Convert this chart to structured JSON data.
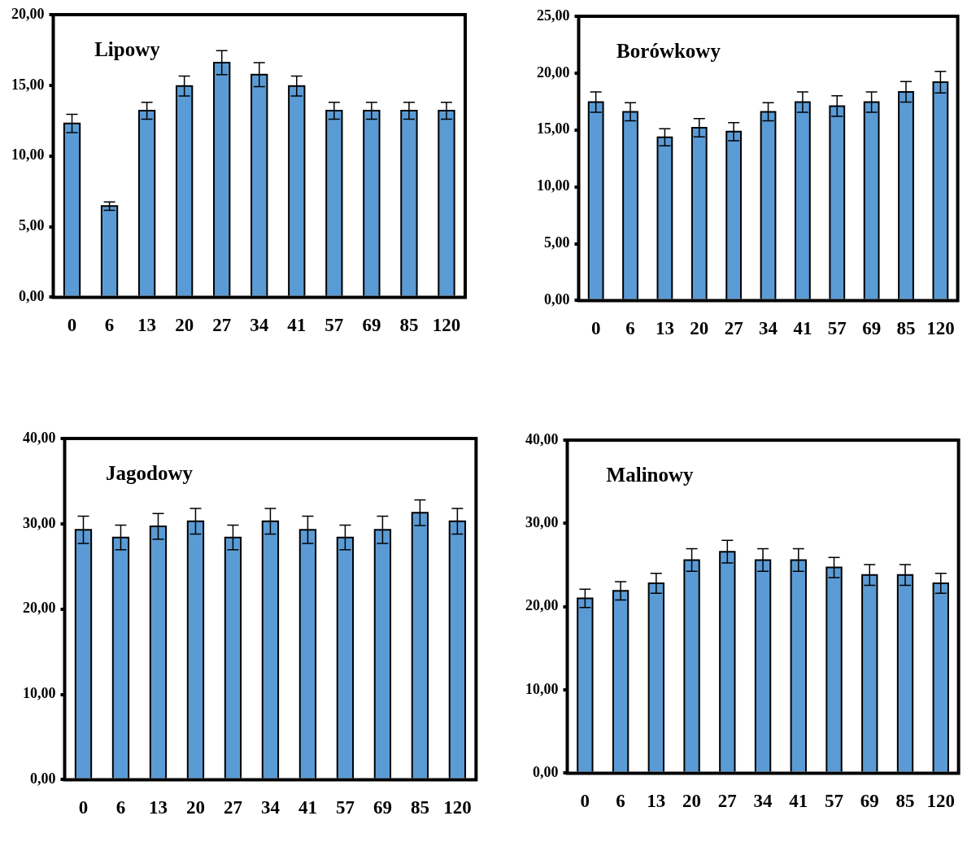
{
  "chart_data": [
    {
      "type": "bar",
      "title": "Lipowy",
      "categories": [
        "0",
        "6",
        "13",
        "20",
        "27",
        "34",
        "41",
        "57",
        "69",
        "85",
        "120"
      ],
      "values": [
        12.3,
        6.45,
        13.2,
        14.95,
        16.6,
        15.75,
        14.95,
        13.2,
        13.2,
        13.2,
        13.2
      ],
      "errors": [
        0.65,
        0.3,
        0.6,
        0.7,
        0.85,
        0.85,
        0.7,
        0.6,
        0.6,
        0.6,
        0.6
      ],
      "color": "#5b9bd5",
      "ylim": [
        0,
        20
      ],
      "yticks": [
        {
          "value": 0,
          "label": "0,00"
        },
        {
          "value": 5,
          "label": "5,00"
        },
        {
          "value": 10,
          "label": "10,00"
        },
        {
          "value": 15,
          "label": "15,00"
        },
        {
          "value": 20,
          "label": "20,00"
        }
      ],
      "grid": false
    },
    {
      "type": "bar",
      "title": "Borówkowy",
      "categories": [
        "0",
        "6",
        "13",
        "20",
        "27",
        "34",
        "41",
        "57",
        "69",
        "85",
        "120"
      ],
      "values": [
        17.45,
        16.6,
        14.35,
        15.2,
        14.85,
        16.6,
        17.45,
        17.1,
        17.45,
        18.35,
        19.2
      ],
      "errors": [
        0.9,
        0.8,
        0.75,
        0.8,
        0.8,
        0.8,
        0.9,
        0.9,
        0.9,
        0.9,
        0.95
      ],
      "color": "#5b9bd5",
      "ylim": [
        0,
        25
      ],
      "yticks": [
        {
          "value": 0,
          "label": "0,00"
        },
        {
          "value": 5,
          "label": "5,00"
        },
        {
          "value": 10,
          "label": "10,00"
        },
        {
          "value": 15,
          "label": "15,00"
        },
        {
          "value": 20,
          "label": "20,00"
        },
        {
          "value": 25,
          "label": "25,00"
        }
      ],
      "grid": false
    },
    {
      "type": "bar",
      "title": "Jagodowy",
      "categories": [
        "0",
        "6",
        "13",
        "20",
        "27",
        "34",
        "41",
        "57",
        "69",
        "85",
        "120"
      ],
      "values": [
        29.3,
        28.4,
        29.7,
        30.3,
        28.4,
        30.3,
        29.3,
        28.4,
        29.3,
        31.3,
        30.3
      ],
      "errors": [
        1.6,
        1.45,
        1.5,
        1.5,
        1.45,
        1.5,
        1.6,
        1.45,
        1.6,
        1.5,
        1.5
      ],
      "color": "#5b9bd5",
      "ylim": [
        0,
        40
      ],
      "yticks": [
        {
          "value": 0,
          "label": "0,00"
        },
        {
          "value": 10,
          "label": "10,00"
        },
        {
          "value": 20,
          "label": "20,00"
        },
        {
          "value": 30,
          "label": "30,00"
        },
        {
          "value": 40,
          "label": "40,00"
        }
      ],
      "grid": false
    },
    {
      "type": "bar",
      "title": "Malinowy",
      "categories": [
        "0",
        "6",
        "13",
        "20",
        "27",
        "34",
        "41",
        "57",
        "69",
        "85",
        "120"
      ],
      "values": [
        21.0,
        21.9,
        22.8,
        25.6,
        26.6,
        25.6,
        25.6,
        24.7,
        23.8,
        23.8,
        22.8
      ],
      "errors": [
        1.1,
        1.1,
        1.2,
        1.35,
        1.35,
        1.35,
        1.35,
        1.2,
        1.25,
        1.25,
        1.2
      ],
      "color": "#5b9bd5",
      "ylim": [
        0,
        40
      ],
      "yticks": [
        {
          "value": 0,
          "label": "0,00"
        },
        {
          "value": 10,
          "label": "10,00"
        },
        {
          "value": 20,
          "label": "20,00"
        },
        {
          "value": 30,
          "label": "30,00"
        },
        {
          "value": 40,
          "label": "40,00"
        }
      ],
      "grid": false
    }
  ]
}
